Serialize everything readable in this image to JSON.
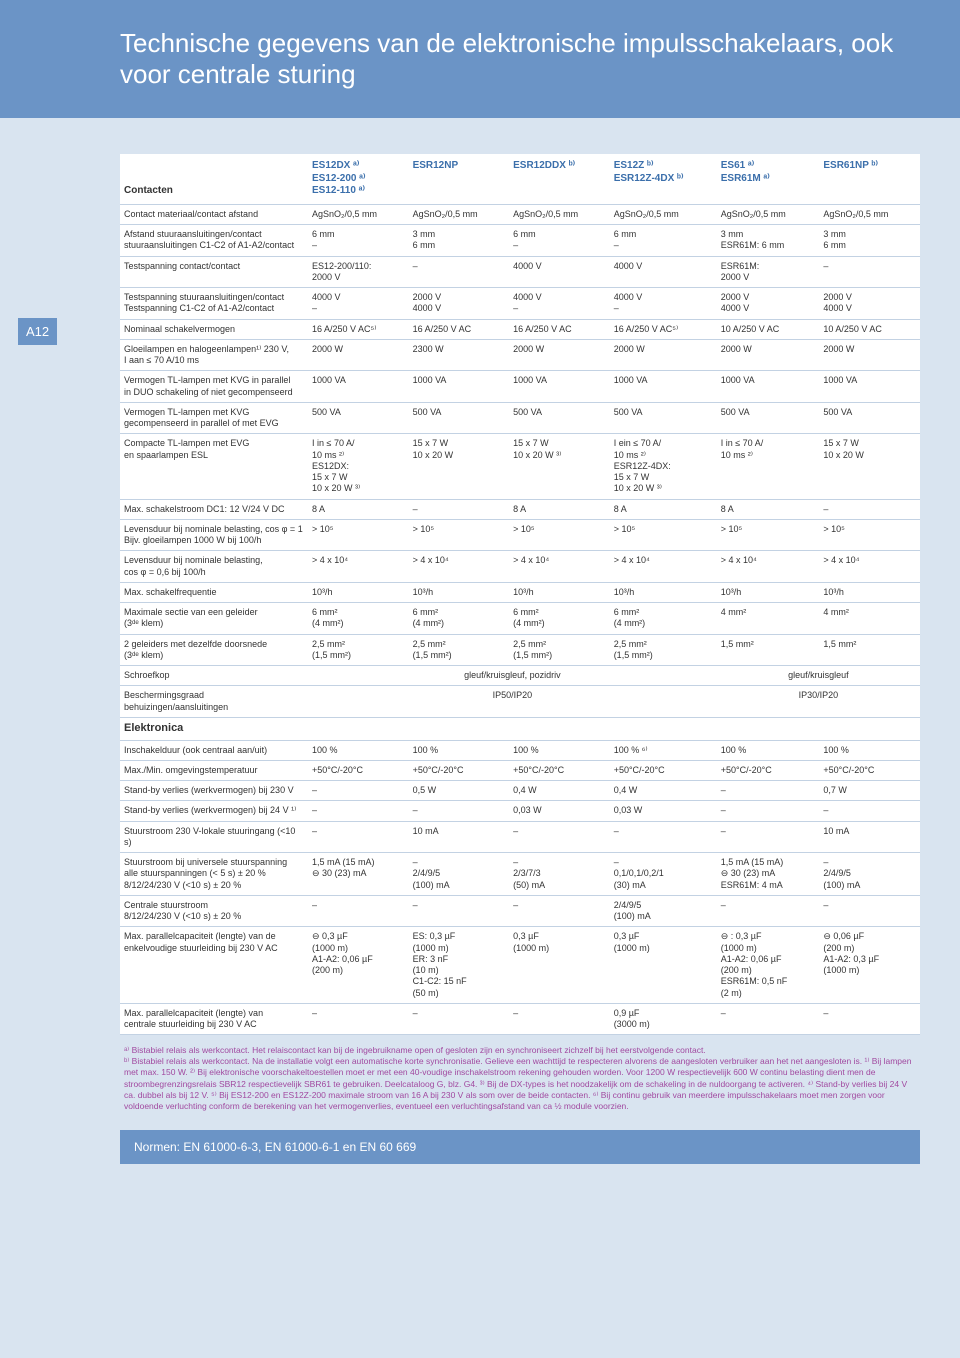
{
  "header": {
    "title": "Technische gegevens van de elektronische impulsschakelaars, ook voor centrale sturing"
  },
  "page_label": "A12",
  "columns": {
    "label_header": "Contacten",
    "c1": "ES12DX ᵃ⁾\nES12-200 ᵃ⁾\nES12-110 ᵃ⁾",
    "c2": "ESR12NP",
    "c3": "ESR12DDX ᵇ⁾",
    "c4": "ES12Z ᵇ⁾\nESR12Z-4DX ᵇ⁾",
    "c5": "ES61 ᵃ⁾\nESR61M ᵃ⁾",
    "c6": "ESR61NP ᵇ⁾"
  },
  "rows": [
    {
      "label": "Contact materiaal/contact afstand",
      "v": [
        "AgSnO₂/0,5 mm",
        "AgSnO₂/0,5 mm",
        "AgSnO₂/0,5 mm",
        "AgSnO₂/0,5 mm",
        "AgSnO₂/0,5 mm",
        "AgSnO₂/0,5 mm"
      ]
    },
    {
      "label": "Afstand stuuraansluitingen/contact\nstuuraansluitingen C1-C2 of A1-A2/contact",
      "v": [
        "6 mm\n–",
        "3 mm\n6 mm",
        "6 mm\n–",
        "6 mm\n–",
        "3 mm\nESR61M: 6 mm",
        "3 mm\n6 mm"
      ]
    },
    {
      "label": "Testspanning contact/contact",
      "v": [
        "ES12-200/110:\n2000 V",
        "–",
        "4000 V",
        "4000 V",
        "ESR61M:\n2000 V",
        "–"
      ]
    },
    {
      "label": "Testspanning stuuraansluitingen/contact\nTestspanning C1-C2 of A1-A2/contact",
      "v": [
        "4000 V\n–",
        "2000 V\n4000 V",
        "4000 V\n–",
        "4000 V\n–",
        "2000 V\n4000 V",
        "2000 V\n4000 V"
      ]
    },
    {
      "label": "Nominaal schakelvermogen",
      "v": [
        "16 A/250 V AC⁵⁾",
        "16 A/250 V AC",
        "16 A/250 V AC",
        "16 A/250 V AC⁵⁾",
        "10 A/250 V AC",
        "10 A/250 V AC"
      ]
    },
    {
      "label": "Gloeilampen en halogeenlampen¹⁾ 230 V,\nI aan ≤ 70 A/10 ms",
      "v": [
        "2000 W",
        "2300 W",
        "2000 W",
        "2000 W",
        "2000 W",
        "2000 W"
      ]
    },
    {
      "label": "Vermogen TL-lampen met KVG in parallel\nin DUO schakeling of niet gecompenseerd",
      "v": [
        "1000 VA",
        "1000 VA",
        "1000 VA",
        "1000 VA",
        "1000 VA",
        "1000 VA"
      ]
    },
    {
      "label": "Vermogen TL-lampen met KVG\ngecompenseerd in parallel of met EVG",
      "v": [
        "500 VA",
        "500 VA",
        "500 VA",
        "500 VA",
        "500 VA",
        "500 VA"
      ]
    },
    {
      "label": "Compacte TL-lampen met EVG\nen spaarlampen ESL",
      "v": [
        "I in ≤ 70 A/\n10 ms ²⁾\nES12DX:\n15 x 7 W\n10 x 20 W ³⁾",
        "15 x 7 W\n10 x 20 W",
        "15 x 7 W\n10 x 20 W ³⁾",
        "I ein ≤ 70 A/\n10 ms ²⁾\nESR12Z-4DX:\n15 x 7 W\n10 x 20 W ³⁾",
        "I in ≤ 70 A/\n10 ms ²⁾",
        "15 x 7 W\n10 x 20 W"
      ]
    },
    {
      "label": "Max. schakelstroom DC1: 12 V/24 V DC",
      "v": [
        "8 A",
        "–",
        "8 A",
        "8 A",
        "8 A",
        "–"
      ]
    },
    {
      "label": "Levensduur bij nominale belasting, cos φ = 1\nBijv. gloeilampen 1000 W bij 100/h",
      "v": [
        "> 10⁵",
        "> 10⁵",
        "> 10⁵",
        "> 10⁵",
        "> 10⁵",
        "> 10⁵"
      ]
    },
    {
      "label": "Levensduur bij nominale belasting,\ncos φ = 0,6 bij 100/h",
      "v": [
        "> 4 x 10⁴",
        "> 4 x 10⁴",
        "> 4 x 10⁴",
        "> 4 x 10⁴",
        "> 4 x 10⁴",
        "> 4 x 10⁴"
      ]
    },
    {
      "label": "Max. schakelfrequentie",
      "v": [
        "10³/h",
        "10³/h",
        "10³/h",
        "10³/h",
        "10³/h",
        "10³/h"
      ]
    },
    {
      "label": "Maximale sectie van een geleider\n(3ᵈᵉ klem)",
      "v": [
        "6 mm²\n(4 mm²)",
        "6 mm²\n(4 mm²)",
        "6 mm²\n(4 mm²)",
        "6 mm²\n(4 mm²)",
        "4 mm²",
        "4 mm²"
      ]
    },
    {
      "label": "2 geleiders met dezelfde doorsnede\n(3ᵈᵉ klem)",
      "v": [
        "2,5 mm²\n(1,5 mm²)",
        "2,5 mm²\n(1,5 mm²)",
        "2,5 mm²\n(1,5 mm²)",
        "2,5 mm²\n(1,5 mm²)",
        "1,5 mm²",
        "1,5 mm²"
      ]
    },
    {
      "label": "Schroefkop",
      "v": [
        "",
        "",
        "gleuf/kruisgleuf, pozidriv",
        "",
        "",
        "gleuf/kruisgleuf"
      ],
      "colspan": {
        "2": 4
      }
    },
    {
      "label": "Beschermingsgraad behuizingen/aansluitingen",
      "v": [
        "",
        "",
        "IP50/IP20",
        "",
        "",
        "IP30/IP20"
      ],
      "colspan": {
        "2": 4
      }
    }
  ],
  "elektronica_header": "Elektronica",
  "erows": [
    {
      "label": "Inschakelduur (ook centraal aan/uit)",
      "v": [
        "100 %",
        "100 %",
        "100 %",
        "100 % ⁶⁾",
        "100 %",
        "100 %"
      ]
    },
    {
      "label": "Max./Min. omgevingstemperatuur",
      "v": [
        "+50°C/-20°C",
        "+50°C/-20°C",
        "+50°C/-20°C",
        "+50°C/-20°C",
        "+50°C/-20°C",
        "+50°C/-20°C"
      ]
    },
    {
      "label": "Stand-by verlies (werkvermogen) bij 230 V",
      "v": [
        "–",
        "0,5 W",
        "0,4 W",
        "0,4 W",
        "–",
        "0,7 W"
      ]
    },
    {
      "label": "Stand-by verlies (werkvermogen) bij 24 V ¹⁾",
      "v": [
        "–",
        "–",
        "0,03 W",
        "0,03 W",
        "–",
        "–"
      ]
    },
    {
      "label": "Stuurstroom 230 V-lokale stuuringang (<10 s)",
      "v": [
        "–",
        "10 mA",
        "–",
        "–",
        "–",
        "10 mA"
      ]
    },
    {
      "label": "Stuurstroom bij universele stuurspanning\nalle stuurspanningen (< 5 s) ± 20 %\n8/12/24/230 V (<10 s) ± 20 %",
      "v": [
        "1,5 mA (15 mA)\n⊖ 30 (23) mA",
        "–\n2/4/9/5\n(100) mA",
        "–\n2/3/7/3\n(50) mA",
        "–\n0,1/0,1/0,2/1\n(30) mA",
        "1,5 mA (15 mA)\n⊖ 30 (23) mA\nESR61M: 4 mA",
        "–\n2/4/9/5\n(100) mA"
      ]
    },
    {
      "label": "Centrale stuurstroom\n8/12/24/230 V (<10 s) ± 20 %",
      "v": [
        "–",
        "–",
        "–",
        "2/4/9/5\n(100) mA",
        "–",
        "–"
      ]
    },
    {
      "label": "Max. parallelcapaciteit (lengte) van de\nenkelvoudige stuurleiding bij 230 V AC",
      "v": [
        "⊖ 0,3 µF\n(1000 m)\nA1-A2: 0,06 µF\n(200 m)",
        "ES: 0,3 µF\n(1000 m)\nER: 3 nF\n(10 m)\nC1-C2: 15 nF\n(50 m)",
        "0,3 µF\n(1000 m)",
        "0,3 µF\n(1000 m)",
        "⊖ : 0,3 µF\n(1000 m)\nA1-A2: 0,06 µF\n(200 m)\nESR61M: 0,5 nF\n(2 m)",
        "⊖ 0,06 µF\n(200 m)\nA1-A2: 0,3 µF\n(1000 m)"
      ]
    },
    {
      "label": "Max. parallelcapaciteit (lengte) van\ncentrale stuurleiding bij 230 V AC",
      "v": [
        "–",
        "–",
        "–",
        "0,9 µF\n(3000 m)",
        "–",
        "–"
      ]
    }
  ],
  "footnotes": "ᵃ⁾ Bistabiel relais als werkcontact. Het relaiscontact kan bij de ingebruikname open of gesloten zijn en synchroniseert zichzelf bij het eerstvolgende contact.\nᵇ⁾ Bistabiel relais als werkcontact. Na de installatie volgt een automatische korte synchronisatie. Gelieve een wachttijd te respecteren alvorens de aangesloten verbruiker aan het net aangesloten is. ¹⁾ Bij lampen met max. 150 W. ²⁾ Bij elektronische voorschakeltoestellen moet er met een 40-voudige inschakelstroom rekening gehouden worden. Voor 1200 W respectievelijk 600 W continu belasting dient men de stroombegrenzingsrelais SBR12 respectievelijk SBR61 te gebruiken. Deelcataloog G, blz. G4. ³⁾ Bij de DX-types is het noodzakelijk om de schakeling in de nuldoorgang te activeren. ⁴⁾ Stand-by verlies bij 24 V ca. dubbel als bij 12 V. ⁵⁾ Bij ES12-200 en ES12Z-200 maximale stroom van 16 A bij 230 V als som over de beide contacten. ⁶⁾ Bij continu gebruik van meerdere impulsschakelaars moet men zorgen voor voldoende verluchting conform de berekening van het vermogenverlies, eventueel een verluchtingsafstand van ca ½ module voorzien.",
  "norms": "Normen: EN 61000-6-3, EN 61000-6-1 en EN 60 669"
}
